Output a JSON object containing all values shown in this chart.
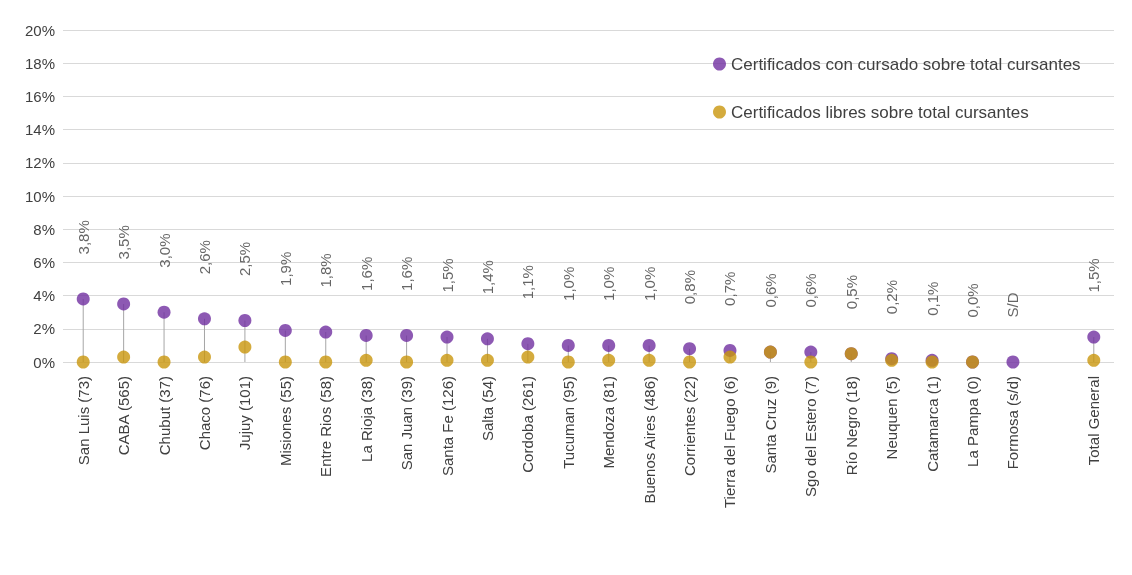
{
  "chart_data": {
    "type": "scatter",
    "categories": [
      "San Luis (73)",
      "CABA (565)",
      "Chubut (37)",
      "Chaco (76)",
      "Jujuy (101)",
      "Misiones (55)",
      "Entre Rios (58)",
      "La Rioja (38)",
      "San Juan (39)",
      "Santa Fe (126)",
      "Salta (54)",
      "Cordoba (261)",
      "Tucuman (95)",
      "Mendoza (81)",
      "Buenos Aires (486)",
      "Corrientes (22)",
      "Tierra del Fuego (6)",
      "Santa Cruz (9)",
      "Sgo del Estero (7)",
      "Río Negro (18)",
      "Neuquen (5)",
      "Catamarca (1)",
      "La Pampa (0)",
      "Formosa (s/d)",
      null,
      "Total General"
    ],
    "series": [
      {
        "name": "Certificados con cursado sobre total cursantes",
        "type": "lollipop",
        "color": "#7030a0",
        "values": [
          3.8,
          3.5,
          3.0,
          2.6,
          2.5,
          1.9,
          1.8,
          1.6,
          1.6,
          1.5,
          1.4,
          1.1,
          1.0,
          1.0,
          1.0,
          0.8,
          0.7,
          0.6,
          0.6,
          0.5,
          0.2,
          0.1,
          0.0,
          0,
          null,
          1.5
        ],
        "value_labels": [
          "3,8%",
          "3,5%",
          "3,0%",
          "2,6%",
          "2,5%",
          "1,9%",
          "1,8%",
          "1,6%",
          "1,6%",
          "1,5%",
          "1,4%",
          "1,1%",
          "1,0%",
          "1,0%",
          "1,0%",
          "0,8%",
          "0,7%",
          "0,6%",
          "0,6%",
          "0,5%",
          "0,2%",
          "0,1%",
          "0,0%",
          "S/D",
          null,
          "1,5%"
        ]
      },
      {
        "name": "Certificados libres sobre total cursantes",
        "color": "#c9960c",
        "values": [
          0,
          0.3,
          0,
          0.3,
          0.9,
          0,
          0,
          0.1,
          0,
          0.1,
          0.1,
          0.3,
          0,
          0.1,
          0.1,
          0,
          0.3,
          0.6,
          0,
          0.5,
          0.1,
          0,
          0,
          null,
          null,
          0.1
        ]
      }
    ],
    "ylim": [
      0,
      20
    ],
    "yticks": [
      {
        "value": 0,
        "label": "0%"
      },
      {
        "value": 2,
        "label": "2%"
      },
      {
        "value": 4,
        "label": "4%"
      },
      {
        "value": 6,
        "label": "6%"
      },
      {
        "value": 8,
        "label": "8%"
      },
      {
        "value": 10,
        "label": "10%"
      },
      {
        "value": 12,
        "label": "12%"
      },
      {
        "value": 14,
        "label": "14%"
      },
      {
        "value": 16,
        "label": "16%"
      },
      {
        "value": 18,
        "label": "18%"
      },
      {
        "value": 20,
        "label": "20%"
      }
    ],
    "grid": "y",
    "legend": "top right",
    "marker": "circle"
  }
}
